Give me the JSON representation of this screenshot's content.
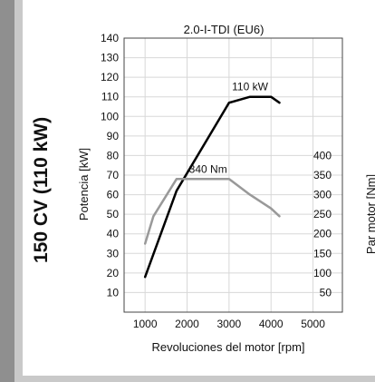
{
  "side_title": "150 CV (110 kW)",
  "chart_data": {
    "type": "line",
    "title": "2.0-I-TDI (EU6)",
    "xlabel": "Revoluciones del motor [rpm]",
    "ylabel_left": "Potencia [kW]",
    "ylabel_right": "Par motor [Nm]",
    "xlim": [
      500,
      5700
    ],
    "ylim_left": [
      0,
      140
    ],
    "ylim_right": [
      0,
      700
    ],
    "x_ticks": [
      1000,
      2000,
      3000,
      4000,
      5000
    ],
    "y_ticks_left": [
      10,
      20,
      30,
      40,
      50,
      60,
      70,
      80,
      90,
      100,
      110,
      120,
      130,
      140
    ],
    "y_ticks_right": [
      50,
      100,
      150,
      200,
      250,
      300,
      350,
      400
    ],
    "grid": true,
    "series": [
      {
        "name": "power",
        "axis": "left",
        "color": "#000000",
        "x": [
          1000,
          1750,
          3000,
          3500,
          4000,
          4200
        ],
        "y": [
          18,
          62,
          107,
          110,
          110,
          107
        ],
        "annotation": {
          "text": "110 kW",
          "x": 3500,
          "y": 110
        }
      },
      {
        "name": "torque",
        "axis": "right",
        "color": "#999999",
        "x": [
          1000,
          1200,
          1750,
          2000,
          2500,
          3000,
          3500,
          4000,
          4200
        ],
        "y": [
          175,
          245,
          340,
          340,
          340,
          340,
          300,
          265,
          245
        ],
        "annotation": {
          "text": "340 Nm",
          "x": 2500,
          "y": 340
        }
      }
    ]
  }
}
